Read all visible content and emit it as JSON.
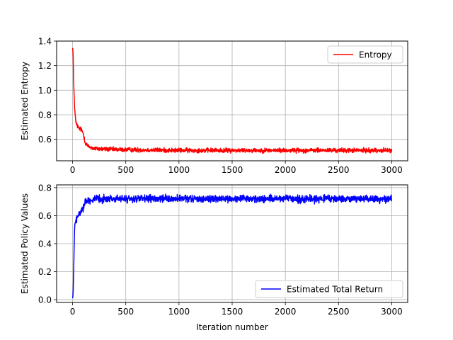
{
  "chart_data": [
    {
      "type": "line",
      "title": "",
      "xlabel": "",
      "ylabel": "Estimated Entropy",
      "xlim": [
        -150,
        3150
      ],
      "ylim": [
        0.425,
        1.4
      ],
      "xticks": [
        0,
        500,
        1000,
        1500,
        2000,
        2500,
        3000
      ],
      "yticks": [
        0.6,
        0.8,
        1.0,
        1.2,
        1.4
      ],
      "xtick_labels": [
        "0",
        "500",
        "1000",
        "1500",
        "2000",
        "2500",
        "3000"
      ],
      "ytick_labels": [
        "0.6",
        "0.8",
        "1.0",
        "1.2",
        "1.4"
      ],
      "grid": true,
      "legend_position": "upper right",
      "series": [
        {
          "name": "Entropy",
          "color": "#ff0000",
          "x_range": [
            0,
            3000
          ],
          "x": [
            0,
            5,
            10,
            20,
            30,
            40,
            50,
            60,
            80,
            100,
            120,
            150,
            200,
            300,
            500,
            1000,
            1500,
            2000,
            2500,
            3000
          ],
          "y": [
            1.35,
            1.3,
            1.05,
            0.85,
            0.74,
            0.72,
            0.7,
            0.69,
            0.68,
            0.65,
            0.57,
            0.54,
            0.525,
            0.52,
            0.515,
            0.51,
            0.51,
            0.51,
            0.51,
            0.51
          ],
          "noise_amplitude": 0.018
        }
      ]
    },
    {
      "type": "line",
      "title": "",
      "xlabel": "Iteration number",
      "ylabel": "Estimated Policy Values",
      "xlim": [
        -150,
        3150
      ],
      "ylim": [
        -0.02,
        0.82
      ],
      "xticks": [
        0,
        500,
        1000,
        1500,
        2000,
        2500,
        3000
      ],
      "yticks": [
        0.0,
        0.2,
        0.4,
        0.6,
        0.8
      ],
      "xtick_labels": [
        "0",
        "500",
        "1000",
        "1500",
        "2000",
        "2500",
        "3000"
      ],
      "ytick_labels": [
        "0.0",
        "0.2",
        "0.4",
        "0.6",
        "0.8"
      ],
      "grid": true,
      "legend_position": "lower right",
      "series": [
        {
          "name": "Estimated Total Return",
          "color": "#0000ff",
          "x_range": [
            0,
            3000
          ],
          "x": [
            0,
            5,
            10,
            15,
            20,
            30,
            40,
            60,
            80,
            100,
            120,
            150,
            200,
            300,
            500,
            1000,
            1500,
            2000,
            2500,
            3000
          ],
          "y": [
            0.01,
            0.04,
            0.2,
            0.4,
            0.52,
            0.56,
            0.58,
            0.61,
            0.63,
            0.66,
            0.7,
            0.71,
            0.715,
            0.72,
            0.72,
            0.72,
            0.72,
            0.72,
            0.72,
            0.72
          ],
          "noise_amplitude": 0.025
        }
      ]
    }
  ]
}
